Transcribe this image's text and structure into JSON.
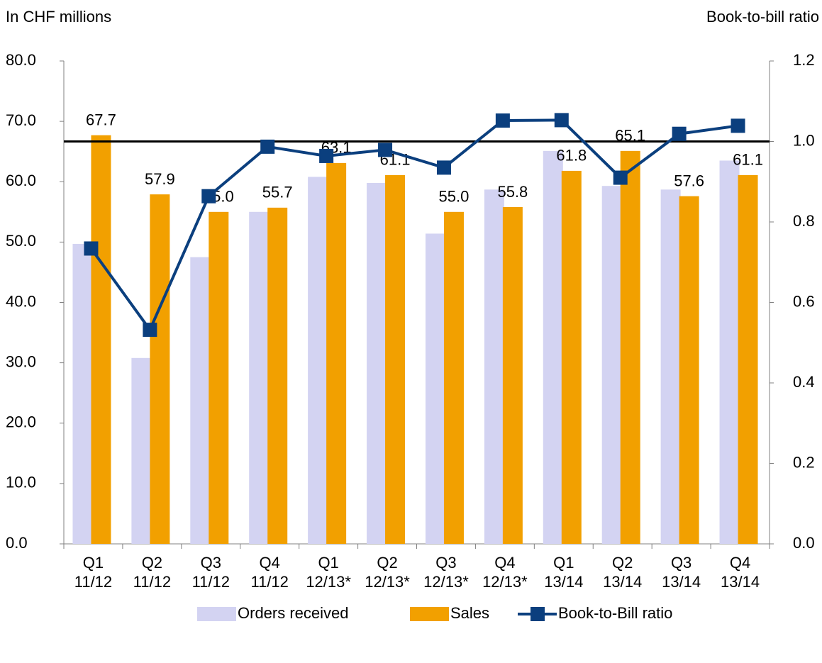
{
  "chart_data": {
    "type": "bar",
    "title_left": "In CHF millions",
    "title_right": "Book-to-bill ratio",
    "categories": [
      [
        "Q1",
        "11/12"
      ],
      [
        "Q2",
        "11/12"
      ],
      [
        "Q3",
        "11/12"
      ],
      [
        "Q4",
        "11/12"
      ],
      [
        "Q1",
        "12/13*"
      ],
      [
        "Q2",
        "12/13*"
      ],
      [
        "Q3",
        "12/13*"
      ],
      [
        "Q4",
        "12/13*"
      ],
      [
        "Q1",
        "13/14"
      ],
      [
        "Q2",
        "13/14"
      ],
      [
        "Q3",
        "13/14"
      ],
      [
        "Q4",
        "13/14"
      ]
    ],
    "series": [
      {
        "name": "Orders received",
        "type": "bar",
        "color": "#d3d3f2",
        "values": [
          49.7,
          30.8,
          47.5,
          55.0,
          60.8,
          59.8,
          51.4,
          58.7,
          65.1,
          59.3,
          58.7,
          63.5
        ]
      },
      {
        "name": "Sales",
        "type": "bar",
        "color": "#f2a000",
        "values": [
          67.7,
          57.9,
          55.0,
          55.7,
          63.1,
          61.1,
          55.0,
          55.8,
          61.8,
          65.1,
          57.6,
          61.1
        ],
        "value_labels": [
          "67.7",
          "57.9",
          "55.0",
          "55.7",
          "63.1",
          "61.1",
          "55.0",
          "55.8",
          "61.8",
          "65.1",
          "57.6",
          "61.1"
        ]
      },
      {
        "name": "Book-to-Bill ratio",
        "type": "line",
        "axis": "y2",
        "color": "#0b3f7e",
        "values": [
          0.734,
          0.532,
          0.864,
          0.987,
          0.964,
          0.979,
          0.935,
          1.052,
          1.053,
          0.91,
          1.019,
          1.039
        ]
      }
    ],
    "ylim": [
      0,
      80
    ],
    "yticks": [
      {
        "value": 0,
        "label": "0.0"
      },
      {
        "value": 10,
        "label": "10.0"
      },
      {
        "value": 20,
        "label": "20.0"
      },
      {
        "value": 30,
        "label": "30.0"
      },
      {
        "value": 40,
        "label": "40.0"
      },
      {
        "value": 50,
        "label": "50.0"
      },
      {
        "value": 60,
        "label": "60.0"
      },
      {
        "value": 70,
        "label": "70.0"
      },
      {
        "value": 80,
        "label": "80.0"
      }
    ],
    "y2lim": [
      0,
      1.2
    ],
    "y2ticks": [
      {
        "value": 0,
        "label": "0.0"
      },
      0.2,
      0.4,
      0.6,
      0.8,
      {
        "value": 1,
        "label": "1.0"
      },
      1.2
    ],
    "reference_line": {
      "axis": "y2",
      "value": 1.0,
      "color": "#000000"
    },
    "legend": "bottom"
  }
}
